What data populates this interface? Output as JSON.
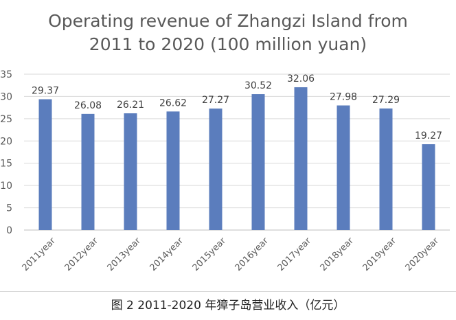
{
  "chart_data": {
    "type": "bar",
    "title": [
      "Operating revenue of Zhangzi Island from",
      "2011 to 2020 (100 million yuan)"
    ],
    "categories": [
      "2011year",
      "2012year",
      "2013year",
      "2014year",
      "2015year",
      "2016year",
      "2017year",
      "2018year",
      "2019year",
      "2020year"
    ],
    "values": [
      29.37,
      26.08,
      26.21,
      26.62,
      27.27,
      30.52,
      32.06,
      27.98,
      27.29,
      19.27
    ],
    "value_labels": [
      "29.37",
      "26.08",
      "26.21",
      "26.62",
      "27.27",
      "30.52",
      "32.06",
      "27.98",
      "27.29",
      "19.27"
    ],
    "y_ticks": [
      "0",
      "5",
      "10",
      "15",
      "20",
      "25",
      "30",
      "35"
    ],
    "ylim": [
      0,
      35
    ],
    "grid": true,
    "bar_color": "#5b7dbd"
  },
  "caption": "图 2 2011-2020 年獐子岛营业收入（亿元）"
}
